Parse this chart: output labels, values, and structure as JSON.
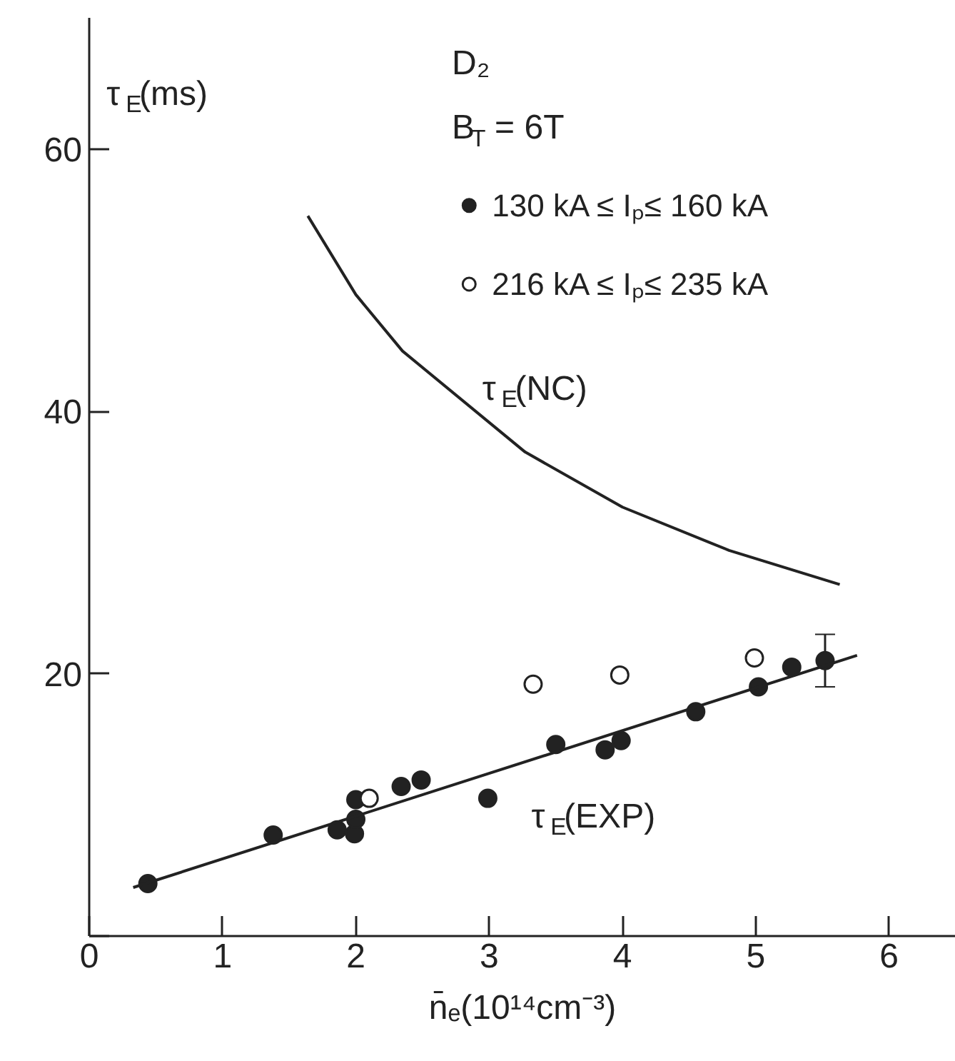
{
  "chart_data": {
    "type": "scatter",
    "xlabel": "n̄ₑ(10¹⁴cm⁻³)",
    "ylabel": "τ$_{E}$(ms)",
    "annotations": [
      "D₂",
      "B$_{T}$ = 6T"
    ],
    "xlim": [
      0,
      6.5
    ],
    "ylim": [
      0,
      70
    ],
    "xticks": [
      0,
      1,
      2,
      3,
      4,
      5,
      6
    ],
    "yticks": [
      {
        "value": 0,
        "label": null
      },
      20,
      40,
      60
    ],
    "grid": false,
    "legend": "top right",
    "tick_labels": "xy",
    "series": [
      {
        "name": "130 kA ≤ Iₚ≤ 160 kA",
        "marker": "circle",
        "color": "#222222",
        "x": [
          0.44,
          1.38,
          1.86,
          1.99,
          2.0,
          2.0,
          2.34,
          2.49,
          2.99,
          3.5,
          3.87,
          3.99,
          4.55,
          5.02,
          5.27,
          5.52
        ],
        "values": [
          4.0,
          7.7,
          8.1,
          7.8,
          8.9,
          10.4,
          11.4,
          11.9,
          10.5,
          14.6,
          14.2,
          14.9,
          17.1,
          19.0,
          20.5,
          21.0
        ],
        "errors": [
          null,
          null,
          null,
          null,
          null,
          null,
          null,
          null,
          null,
          null,
          null,
          null,
          null,
          null,
          null,
          2.0
        ]
      },
      {
        "name": "216 kA ≤ Iₚ≤ 235 kA",
        "marker": "circle",
        "color": "#ffffff",
        "x": [
          2.1,
          3.33,
          3.98,
          4.99
        ],
        "values": [
          10.5,
          19.2,
          19.9,
          21.2
        ]
      },
      {
        "name": "τ$_{E}$(NC)",
        "type": "line",
        "color": "#222222",
        "x": [
          1.64,
          2.0,
          2.35,
          3.27,
          4.0,
          4.8,
          5.63
        ],
        "values": [
          54.9,
          48.9,
          44.6,
          36.9,
          32.7,
          29.4,
          26.8
        ]
      },
      {
        "name": "τ$_{E}$(EXP)",
        "type": "line",
        "color": "#222222",
        "x": [
          0.33,
          5.76
        ],
        "values": [
          3.7,
          21.4
        ]
      }
    ]
  }
}
